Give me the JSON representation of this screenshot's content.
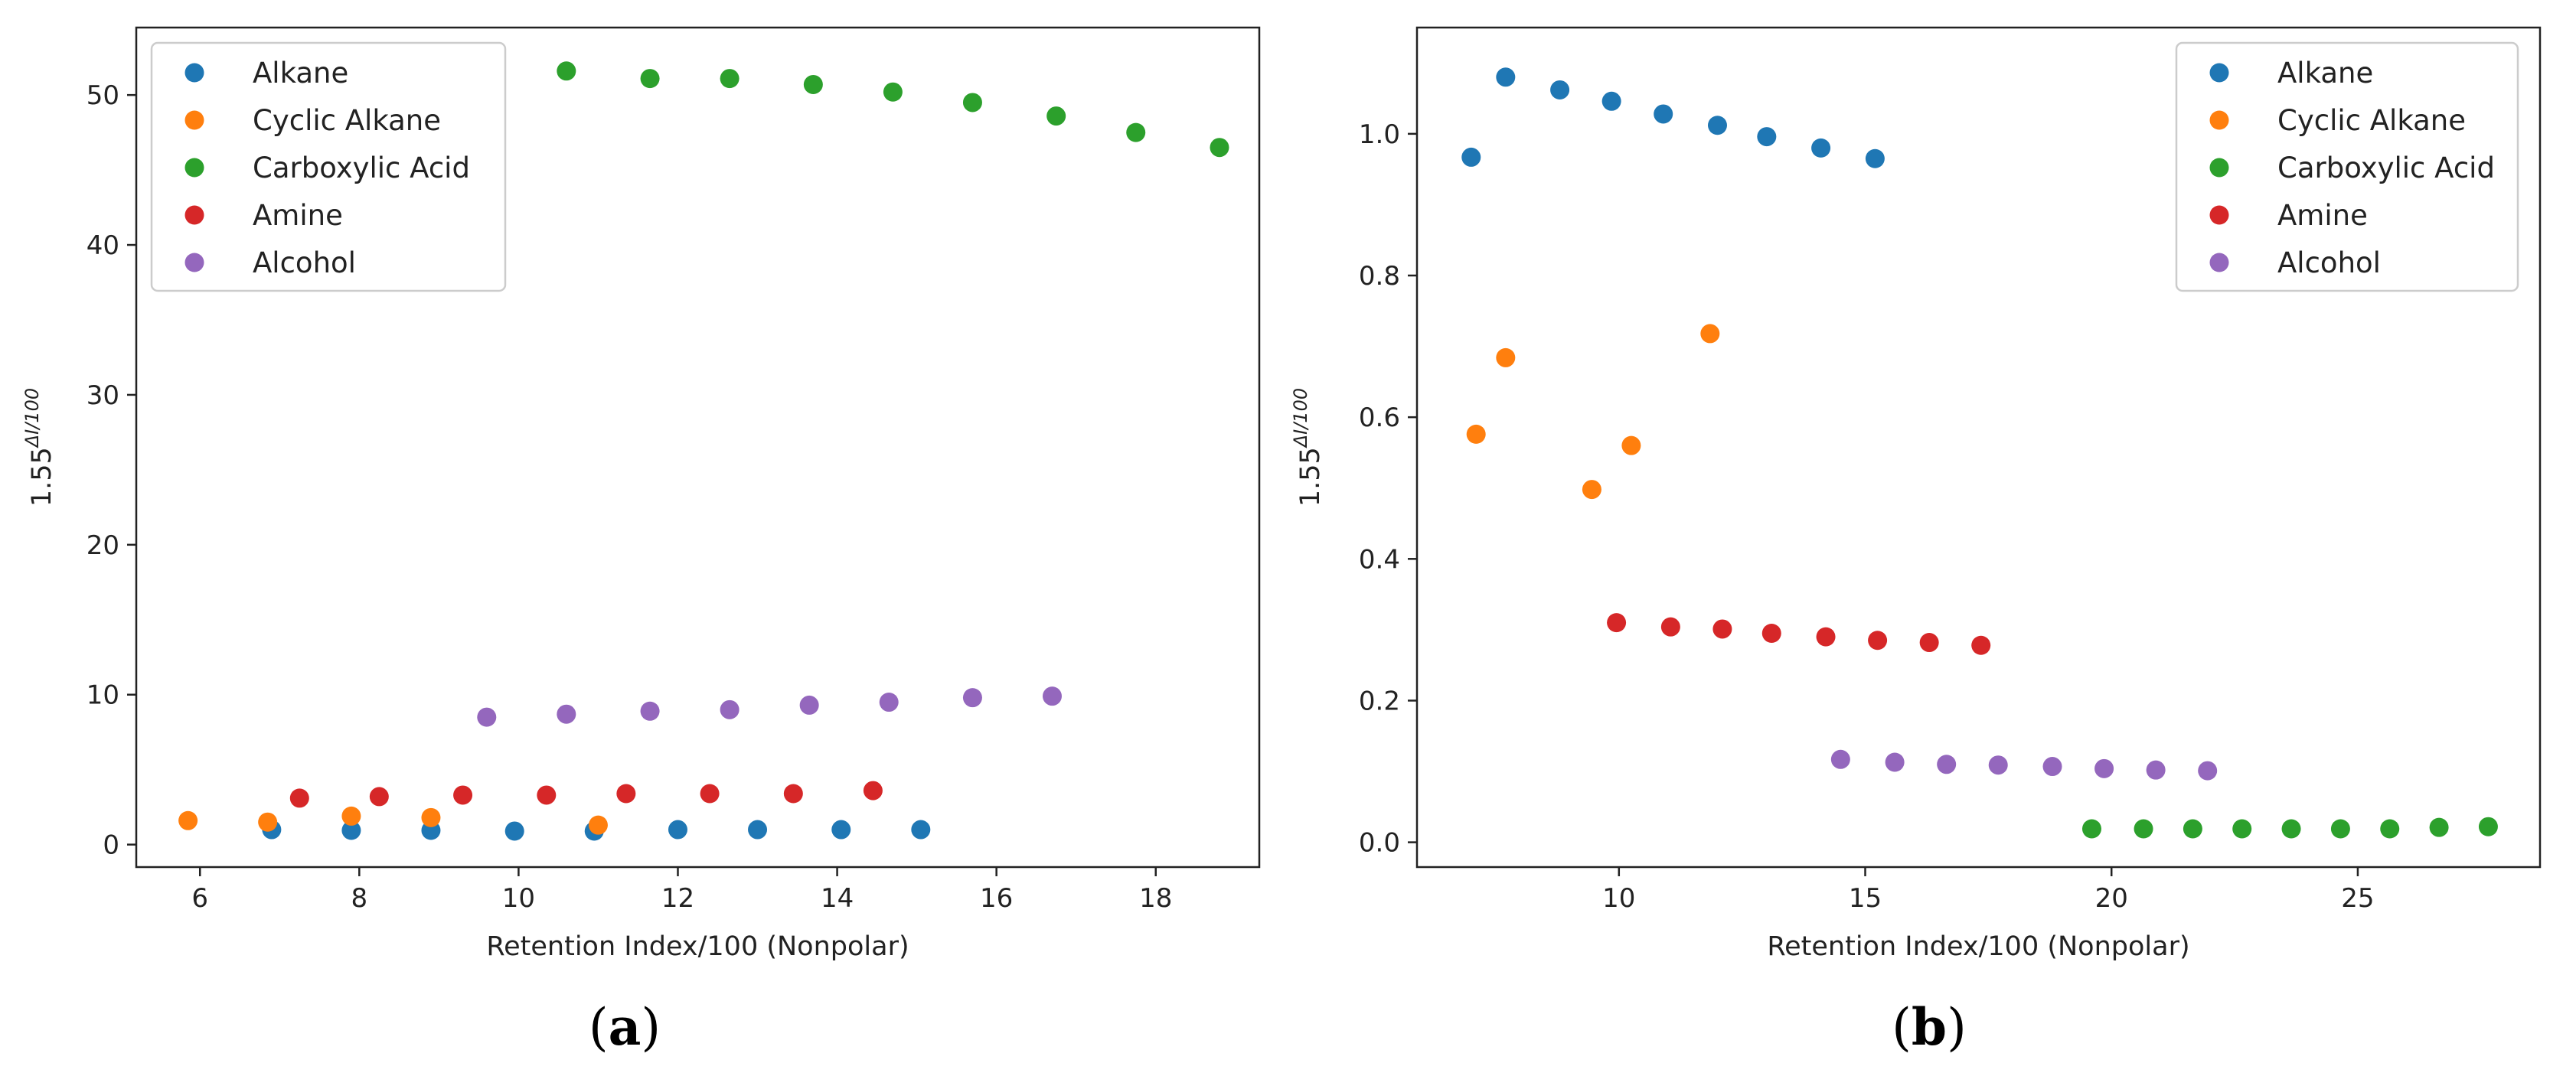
{
  "chart_data": [
    {
      "type": "scatter",
      "caption": "a",
      "xlabel": "Retention Index/100 (Nonpolar)",
      "ylabel_base": "1.55",
      "ylabel_exp": "ΔI/100",
      "xlim": [
        5.2,
        19.3
      ],
      "ylim": [
        -1.5,
        54.5
      ],
      "xticks": [
        6,
        8,
        10,
        12,
        14,
        16,
        18
      ],
      "yticks": [
        0,
        10,
        20,
        30,
        40,
        50
      ],
      "legend_loc": "upper-left",
      "series": [
        {
          "name": "Alkane",
          "color": "#1f77b4",
          "x": [
            6.9,
            7.9,
            8.9,
            9.95,
            10.95,
            12.0,
            13.0,
            14.05,
            15.05
          ],
          "y": [
            1.0,
            0.95,
            0.95,
            0.9,
            0.9,
            1.0,
            1.0,
            1.0,
            1.0
          ]
        },
        {
          "name": "Cyclic Alkane",
          "color": "#ff7f0e",
          "x": [
            5.85,
            6.85,
            7.9,
            8.9,
            11.0
          ],
          "y": [
            1.6,
            1.5,
            1.9,
            1.8,
            1.3
          ]
        },
        {
          "name": "Carboxylic Acid",
          "color": "#2ca02c",
          "x": [
            10.6,
            11.65,
            12.65,
            13.7,
            14.7,
            15.7,
            16.75,
            17.75,
            18.8
          ],
          "y": [
            51.6,
            51.1,
            51.1,
            50.7,
            50.2,
            49.5,
            48.6,
            47.5,
            46.5
          ]
        },
        {
          "name": "Amine",
          "color": "#d62728",
          "x": [
            7.25,
            8.25,
            9.3,
            10.35,
            11.35,
            12.4,
            13.45,
            14.45
          ],
          "y": [
            3.1,
            3.2,
            3.3,
            3.3,
            3.4,
            3.4,
            3.4,
            3.6
          ]
        },
        {
          "name": "Alcohol",
          "color": "#9467bd",
          "x": [
            9.6,
            10.6,
            11.65,
            12.65,
            13.65,
            14.65,
            15.7,
            16.7
          ],
          "y": [
            8.5,
            8.7,
            8.9,
            9.0,
            9.3,
            9.5,
            9.8,
            9.9
          ]
        }
      ]
    },
    {
      "type": "scatter",
      "caption": "b",
      "xlabel": "Retention Index/100 (Nonpolar)",
      "ylabel_base": "1.55",
      "ylabel_exp": "ΔI/100",
      "xlim": [
        5.9,
        28.7
      ],
      "ylim": [
        -0.035,
        1.15
      ],
      "xticks": [
        10,
        15,
        20,
        25
      ],
      "yticks": [
        0.0,
        0.2,
        0.4,
        0.6,
        0.8,
        1.0
      ],
      "ytick_labels": [
        "0.0",
        "0.2",
        "0.4",
        "0.6",
        "0.8",
        "1.0"
      ],
      "legend_loc": "upper-right",
      "series": [
        {
          "name": "Alkane",
          "color": "#1f77b4",
          "x": [
            7.0,
            7.7,
            8.8,
            9.85,
            10.9,
            12.0,
            13.0,
            14.1,
            15.2
          ],
          "y": [
            0.967,
            1.08,
            1.062,
            1.046,
            1.028,
            1.012,
            0.996,
            0.98,
            0.965
          ]
        },
        {
          "name": "Cyclic Alkane",
          "color": "#ff7f0e",
          "x": [
            7.1,
            7.7,
            9.45,
            10.25,
            11.85
          ],
          "y": [
            0.576,
            0.684,
            0.498,
            0.56,
            0.718
          ]
        },
        {
          "name": "Carboxylic Acid",
          "color": "#2ca02c",
          "x": [
            19.6,
            20.65,
            21.65,
            22.65,
            23.65,
            24.65,
            25.65,
            26.65,
            27.65
          ],
          "y": [
            0.019,
            0.019,
            0.019,
            0.019,
            0.019,
            0.019,
            0.019,
            0.021,
            0.022
          ]
        },
        {
          "name": "Amine",
          "color": "#d62728",
          "x": [
            9.95,
            11.05,
            12.1,
            13.1,
            14.2,
            15.25,
            16.3,
            17.35
          ],
          "y": [
            0.31,
            0.304,
            0.301,
            0.295,
            0.29,
            0.285,
            0.282,
            0.278
          ]
        },
        {
          "name": "Alcohol",
          "color": "#9467bd",
          "x": [
            14.5,
            15.6,
            16.65,
            17.7,
            18.8,
            19.85,
            20.9,
            21.95
          ],
          "y": [
            0.117,
            0.113,
            0.11,
            0.109,
            0.107,
            0.104,
            0.102,
            0.101
          ]
        }
      ]
    }
  ]
}
